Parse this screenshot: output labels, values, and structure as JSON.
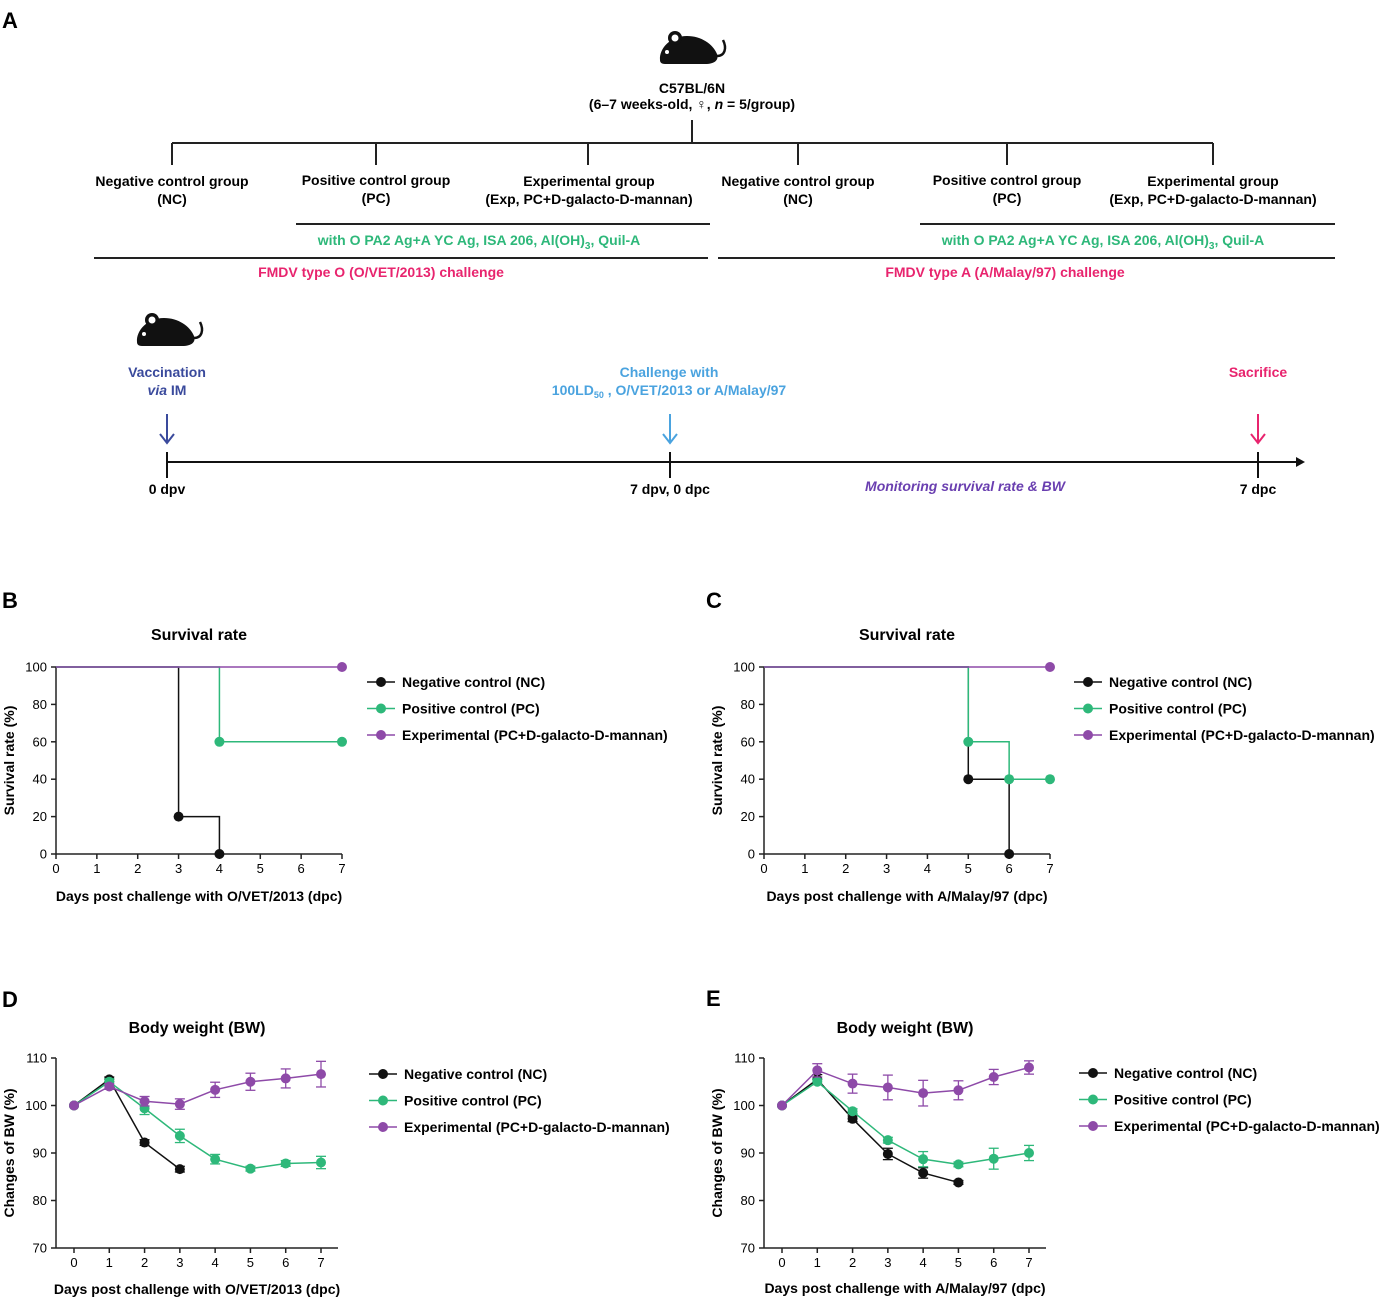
{
  "panel_labels": {
    "a": "A",
    "b": "B",
    "c": "C",
    "d": "D",
    "e": "E"
  },
  "colors": {
    "black": "#111111",
    "green": "#2eb87a",
    "purple": "#8e4aa8",
    "pink": "#e8246e",
    "navy": "#3a4a9c",
    "sky": "#4aa3df",
    "violet": "#6a3fb0",
    "axis": "#222222"
  },
  "schematic": {
    "mouse_icon": "mouse-icon",
    "strain": "C57BL/6N",
    "cohort": "(6–7 weeks-old, ♀, ",
    "cohort_n": "n",
    "cohort_end": " = 5/group)",
    "left_groups": [
      {
        "name": "Negative control group",
        "abbr": "(NC)"
      },
      {
        "name": "Positive control group",
        "abbr": "(PC)"
      },
      {
        "name": "Experimental group",
        "abbr": "(Exp, PC+D-galacto-D-mannan)"
      }
    ],
    "right_groups": [
      {
        "name": "Negative control group",
        "abbr": "(NC)"
      },
      {
        "name": "Positive control group",
        "abbr": "(PC)"
      },
      {
        "name": "Experimental group",
        "abbr": "(Exp, PC+D-galacto-D-mannan)"
      }
    ],
    "vaccine_a": "with O PA2 Ag+A YC Ag, ISA 206, Al(OH)",
    "vaccine_sub": "3",
    "vaccine_b": ",  Quil-A",
    "challenge_left": "FMDV type O (O/VET/2013)  challenge",
    "challenge_right": "FMDV type A (A/Malay/97) challenge"
  },
  "timeline": {
    "vaccination_1": "Vaccination",
    "vaccination_2a": "via",
    "vaccination_2b": " IM",
    "challenge_1": "Challenge with",
    "challenge_2a": "100LD",
    "challenge_2sub": "50",
    "challenge_2b": " , O/VET/2013 or A/Malay/97",
    "sacrifice": "Sacrifice",
    "t0": "0 dpv",
    "t7": "7 dpv, 0 dpc",
    "monitor": "Monitoring survival rate & BW",
    "tend": "7 dpc"
  },
  "chart_data": [
    {
      "panel": "B",
      "type": "line",
      "step": true,
      "title": "Survival rate",
      "xlabel": "Days post challenge with O/VET/2013 (dpc)",
      "ylabel": "Survival rate (%)",
      "x": [
        0,
        1,
        2,
        3,
        4,
        5,
        6,
        7
      ],
      "xlim": [
        0,
        7
      ],
      "ylim": [
        0,
        100
      ],
      "yticks": [
        0,
        20,
        40,
        60,
        80,
        100
      ],
      "legend": "right",
      "series": [
        {
          "name": "Negative control (NC)",
          "color": "#111111",
          "steps": [
            [
              0,
              100
            ],
            [
              3,
              20
            ],
            [
              4,
              0
            ]
          ],
          "markers": [
            [
              3,
              20
            ],
            [
              4,
              0
            ]
          ]
        },
        {
          "name": "Positive control (PC)",
          "color": "#2eb87a",
          "steps": [
            [
              0,
              100
            ],
            [
              4,
              60
            ],
            [
              7,
              60
            ]
          ],
          "markers": [
            [
              4,
              60
            ],
            [
              7,
              60
            ]
          ]
        },
        {
          "name": "Experimental (PC+D-galacto-D-mannan)",
          "color": "#8e4aa8",
          "steps": [
            [
              0,
              100
            ],
            [
              7,
              100
            ]
          ],
          "markers": [
            [
              7,
              100
            ]
          ]
        }
      ]
    },
    {
      "panel": "C",
      "type": "line",
      "step": true,
      "title": "Survival rate",
      "xlabel": "Days post challenge with A/Malay/97 (dpc)",
      "ylabel": "Survival rate (%)",
      "x": [
        0,
        1,
        2,
        3,
        4,
        5,
        6,
        7
      ],
      "xlim": [
        0,
        7
      ],
      "ylim": [
        0,
        100
      ],
      "yticks": [
        0,
        20,
        40,
        60,
        80,
        100
      ],
      "legend": "right",
      "series": [
        {
          "name": "Negative control (NC)",
          "color": "#111111",
          "steps": [
            [
              0,
              100
            ],
            [
              5,
              40
            ],
            [
              6,
              0
            ]
          ],
          "markers": [
            [
              5,
              40
            ],
            [
              6,
              0
            ]
          ]
        },
        {
          "name": "Positive control (PC)",
          "color": "#2eb87a",
          "steps": [
            [
              0,
              100
            ],
            [
              5,
              60
            ],
            [
              6,
              40
            ],
            [
              7,
              40
            ]
          ],
          "markers": [
            [
              5,
              60
            ],
            [
              6,
              40
            ],
            [
              7,
              40
            ]
          ]
        },
        {
          "name": "Experimental (PC+D-galacto-D-mannan)",
          "color": "#8e4aa8",
          "steps": [
            [
              0,
              100
            ],
            [
              7,
              100
            ]
          ],
          "markers": [
            [
              7,
              100
            ]
          ]
        }
      ]
    },
    {
      "panel": "D",
      "type": "line",
      "title": "Body weight (BW)",
      "xlabel": "Days post challenge with O/VET/2013 (dpc)",
      "ylabel": "Changes of BW (%)",
      "x": [
        0,
        1,
        2,
        3,
        4,
        5,
        6,
        7
      ],
      "xlim": [
        0,
        7
      ],
      "ylim": [
        70,
        110
      ],
      "yticks": [
        70,
        80,
        90,
        100,
        110
      ],
      "legend": "right",
      "series": [
        {
          "name": "Negative control (NC)",
          "color": "#111111",
          "x": [
            0,
            1,
            2,
            3
          ],
          "values": [
            100,
            105.5,
            92.2,
            86.6
          ],
          "err": [
            0,
            0.5,
            0.6,
            0.6
          ]
        },
        {
          "name": "Positive control (PC)",
          "color": "#2eb87a",
          "x": [
            0,
            1,
            2,
            3,
            4,
            5,
            6,
            7
          ],
          "values": [
            100,
            105,
            99.4,
            93.6,
            88.7,
            86.7,
            87.8,
            88.0
          ],
          "err": [
            0,
            0.6,
            1.3,
            1.4,
            1.0,
            0.5,
            0.6,
            1.3
          ]
        },
        {
          "name": "Experimental (PC+D-galacto-D-mannan)",
          "color": "#8e4aa8",
          "x": [
            0,
            1,
            2,
            3,
            4,
            5,
            6,
            7
          ],
          "values": [
            100,
            104,
            100.9,
            100.3,
            103.3,
            105,
            105.7,
            106.6
          ],
          "err": [
            0,
            0.6,
            1.0,
            1.1,
            1.6,
            1.8,
            2.0,
            2.7
          ]
        }
      ]
    },
    {
      "panel": "E",
      "type": "line",
      "title": "Body weight (BW)",
      "xlabel": "Days post challenge with A/Malay/97 (dpc)",
      "ylabel": "Changes of BW (%)",
      "x": [
        0,
        1,
        2,
        3,
        4,
        5,
        6,
        7
      ],
      "xlim": [
        0,
        7
      ],
      "ylim": [
        70,
        110
      ],
      "yticks": [
        70,
        80,
        90,
        100,
        110
      ],
      "legend": "right",
      "series": [
        {
          "name": "Negative control (NC)",
          "color": "#111111",
          "x": [
            0,
            1,
            2,
            3,
            4,
            5
          ],
          "values": [
            100,
            105.5,
            97.2,
            89.8,
            85.8,
            83.8
          ],
          "err": [
            0,
            1.0,
            0.6,
            1.2,
            1.1,
            0.4
          ]
        },
        {
          "name": "Positive control (PC)",
          "color": "#2eb87a",
          "x": [
            0,
            1,
            2,
            3,
            4,
            5,
            6,
            7
          ],
          "values": [
            100,
            105,
            98.8,
            92.7,
            88.7,
            87.6,
            88.8,
            90.0
          ],
          "err": [
            0,
            0.6,
            0.5,
            0.6,
            1.6,
            0.5,
            2.2,
            1.6
          ]
        },
        {
          "name": "Experimental (PC+D-galacto-D-mannan)",
          "color": "#8e4aa8",
          "x": [
            0,
            1,
            2,
            3,
            4,
            5,
            6,
            7
          ],
          "values": [
            100,
            107.4,
            104.6,
            103.8,
            102.6,
            103.2,
            106,
            108
          ],
          "err": [
            0,
            1.4,
            2.0,
            2.6,
            2.7,
            2.0,
            1.6,
            1.4
          ]
        }
      ]
    }
  ]
}
